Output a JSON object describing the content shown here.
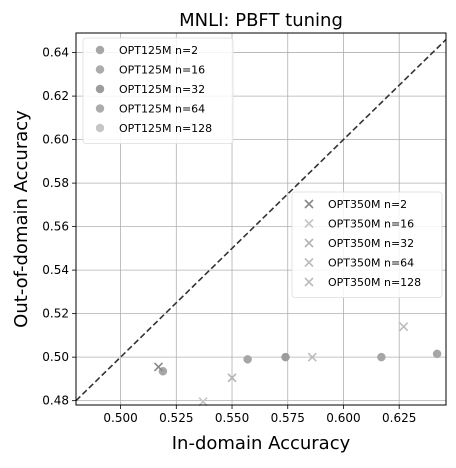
{
  "chart_data": {
    "type": "scatter",
    "title": "MNLI: PBFT tuning",
    "xlabel": "In-domain Accuracy",
    "ylabel": "Out-of-domain Accuracy",
    "xlim": [
      0.48,
      0.646
    ],
    "ylim": [
      0.478,
      0.649
    ],
    "xticks": [
      "0.500",
      "0.525",
      "0.550",
      "0.575",
      "0.600",
      "0.625"
    ],
    "xtick_values": [
      0.5,
      0.525,
      0.55,
      0.575,
      0.6,
      0.625
    ],
    "yticks": [
      "0.48",
      "0.50",
      "0.52",
      "0.54",
      "0.56",
      "0.58",
      "0.60",
      "0.62",
      "0.64"
    ],
    "ytick_values": [
      0.48,
      0.5,
      0.52,
      0.54,
      0.56,
      0.58,
      0.6,
      0.62,
      0.64
    ],
    "grid": true,
    "reference_line": "y = x",
    "legends": [
      {
        "placement": "top-left",
        "entries": [
          "OPT125M n=2",
          "OPT125M n=16",
          "OPT125M n=32",
          "OPT125M n=64",
          "OPT125M n=128"
        ]
      },
      {
        "placement": "center-right",
        "entries": [
          "OPT350M n=2",
          "OPT350M n=16",
          "OPT350M n=32",
          "OPT350M n=64",
          "OPT350M n=128"
        ]
      }
    ],
    "series": [
      {
        "name": "OPT125M n=2",
        "marker": "circle",
        "color": "#a6a6a6",
        "points": [
          [
            0.519,
            0.4935
          ]
        ]
      },
      {
        "name": "OPT125M n=16",
        "marker": "circle",
        "color": "#a6a6a6",
        "points": [
          [
            0.557,
            0.499
          ]
        ]
      },
      {
        "name": "OPT125M n=32",
        "marker": "circle",
        "color": "#9c9c9c",
        "points": [
          [
            0.574,
            0.5
          ]
        ]
      },
      {
        "name": "OPT125M n=64",
        "marker": "circle",
        "color": "#a6a6a6",
        "points": [
          [
            0.617,
            0.5
          ]
        ]
      },
      {
        "name": "OPT125M n=128",
        "marker": "circle",
        "color": "#a6a6a6",
        "points": [
          [
            0.642,
            0.5015
          ]
        ]
      },
      {
        "name": "OPT350M n=2",
        "marker": "x",
        "color": "#888888",
        "points": [
          [
            0.517,
            0.4955
          ]
        ]
      },
      {
        "name": "OPT350M n=16",
        "marker": "x",
        "color": "#c6c6c6",
        "points": [
          [
            0.537,
            0.4795
          ]
        ]
      },
      {
        "name": "OPT350M n=32",
        "marker": "x",
        "color": "#b4b4b4",
        "points": [
          [
            0.55,
            0.4905
          ]
        ]
      },
      {
        "name": "OPT350M n=64",
        "marker": "x",
        "color": "#bcbcbc",
        "points": [
          [
            0.586,
            0.5
          ]
        ]
      },
      {
        "name": "OPT350M n=128",
        "marker": "x",
        "color": "#bcbcbc",
        "points": [
          [
            0.627,
            0.514
          ]
        ]
      }
    ],
    "legend_marker_colors": {
      "opt125m": [
        "#a6a6a6",
        "#acacac",
        "#9c9c9c",
        "#acacac",
        "#c6c6c6"
      ],
      "opt350m": [
        "#888888",
        "#c6c6c6",
        "#b4b4b4",
        "#bcbcbc",
        "#bcbcbc"
      ]
    }
  }
}
